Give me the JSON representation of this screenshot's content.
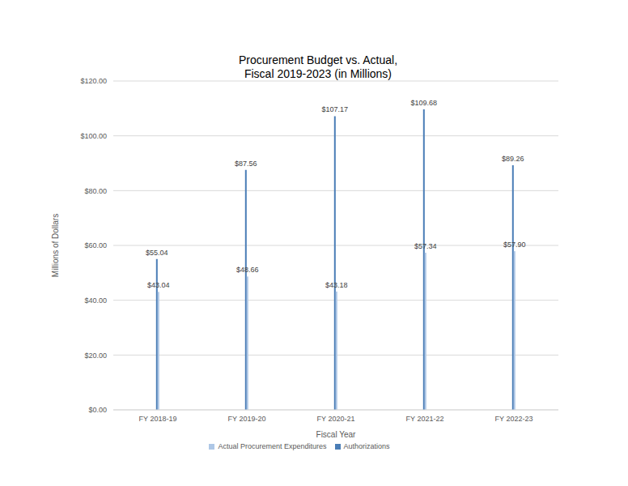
{
  "chart_data": {
    "type": "bar",
    "title": "Procurement Budget vs. Actual, Fiscal 2019-2023 (in Millions)",
    "x_label": "Fiscal Year",
    "y_label": "Millions of Dollars",
    "categories": [
      "FY 2018-19",
      "FY 2019-20",
      "FY 2020-21",
      "FY 2021-22",
      "FY 2022-23"
    ],
    "series": [
      {
        "name": "Authorizations",
        "color": "#4a7db6",
        "values": [
          55.04,
          87.56,
          107.17,
          109.68,
          89.26
        ],
        "value_labels": [
          "$55.04",
          "$87.56",
          "$107.17",
          "$109.68",
          "$89.26"
        ]
      },
      {
        "name": "Actual Procurement Expenditures",
        "color": "#aec7e6",
        "values": [
          43.04,
          48.66,
          43.18,
          57.34,
          57.9
        ],
        "value_labels": [
          "$43.04",
          "$48.66",
          "$43.18",
          "$57.34",
          "$57.90"
        ]
      }
    ],
    "ylim": [
      0,
      120
    ],
    "yticks": [
      {
        "value": 0,
        "label": "$0.00"
      },
      {
        "value": 20,
        "label": "$20.00"
      },
      {
        "value": 40,
        "label": "$40.00"
      },
      {
        "value": 60,
        "label": "$60.00"
      },
      {
        "value": 80,
        "label": "$80.00"
      },
      {
        "value": 100,
        "label": "$100.00"
      },
      {
        "value": 120,
        "label": "$120.00"
      }
    ],
    "grid": true,
    "legend": "bottom",
    "data_labels": true
  }
}
